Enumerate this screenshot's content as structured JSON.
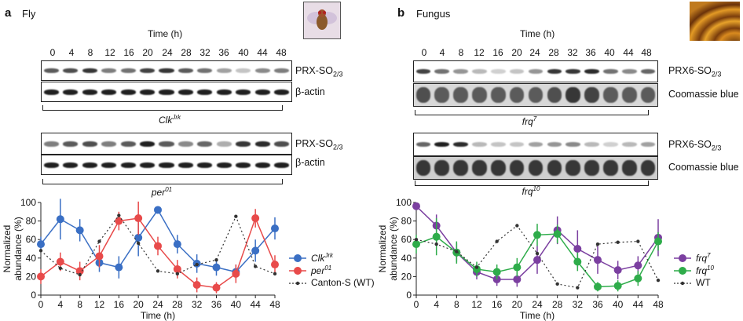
{
  "panel_a": {
    "letter": "a",
    "title": "Fly",
    "image_icon": "fly-photo-icon",
    "time_title": "Time (h)",
    "times": [
      "0",
      "4",
      "8",
      "12",
      "16",
      "20",
      "24",
      "28",
      "32",
      "36",
      "40",
      "44",
      "48"
    ],
    "blot1": {
      "label_main": "PRX-SO",
      "label_sub": "2/3"
    },
    "blot2": {
      "label": "β-actin"
    },
    "genotype1": {
      "main": "Clk",
      "sup": "Jrk"
    },
    "blot3": {
      "label_main": "PRX-SO",
      "label_sub": "2/3"
    },
    "blot4": {
      "label": "β-actin"
    },
    "genotype2": {
      "main": "per",
      "sup": "01"
    }
  },
  "panel_b": {
    "letter": "b",
    "title": "Fungus",
    "image_icon": "fungus-culture-photo-icon",
    "time_title": "Time (h)",
    "times": [
      "0",
      "4",
      "8",
      "12",
      "16",
      "20",
      "24",
      "28",
      "32",
      "36",
      "40",
      "44",
      "48"
    ],
    "blot1": {
      "label_main": "PRX6-SO",
      "label_sub": "2/3"
    },
    "blot2": {
      "label": "Coomassie blue"
    },
    "genotype1": {
      "main": "frq",
      "sup": "7"
    },
    "blot3": {
      "label_main": "PRX6-SO",
      "label_sub": "2/3"
    },
    "blot4": {
      "label": "Coomassie blue"
    },
    "genotype2": {
      "main": "frq",
      "sup": "10"
    }
  },
  "chart_data": [
    {
      "type": "line",
      "panel": "a",
      "xlabel": "Time (h)",
      "ylabel": "Normalized abundance (%)",
      "xlim": [
        0,
        48
      ],
      "ylim": [
        0,
        100
      ],
      "xticks": [
        0,
        4,
        8,
        12,
        16,
        20,
        24,
        28,
        32,
        36,
        40,
        44,
        48
      ],
      "yticks": [
        0,
        20,
        40,
        60,
        80,
        100
      ],
      "legend_placement": "right",
      "series": [
        {
          "name_main": "Clk",
          "name_sup": "Jrk",
          "color": "#3a6fc4",
          "style": "solid",
          "x": [
            0,
            4,
            8,
            12,
            16,
            20,
            24,
            28,
            32,
            36,
            40,
            44,
            48
          ],
          "y": [
            55,
            82,
            70,
            35,
            30,
            62,
            92,
            55,
            34,
            30,
            25,
            48,
            72
          ],
          "err": [
            8,
            22,
            12,
            10,
            12,
            20,
            0,
            10,
            10,
            9,
            8,
            12,
            12
          ]
        },
        {
          "name_main": "per",
          "name_sup": "01",
          "color": "#e84a4a",
          "style": "solid",
          "x": [
            0,
            4,
            8,
            12,
            16,
            20,
            24,
            28,
            32,
            36,
            40,
            44,
            48
          ],
          "y": [
            20,
            36,
            26,
            42,
            80,
            83,
            53,
            28,
            11,
            8,
            23,
            83,
            33
          ],
          "err": [
            8,
            10,
            10,
            12,
            10,
            18,
            10,
            10,
            8,
            6,
            10,
            10,
            10
          ]
        },
        {
          "name": "Canton-S (WT)",
          "color": "#333333",
          "style": "dotted",
          "x": [
            0,
            4,
            8,
            12,
            16,
            20,
            24,
            28,
            32,
            36,
            40,
            44,
            48
          ],
          "y": [
            48,
            29,
            22,
            58,
            86,
            56,
            26,
            23,
            33,
            38,
            85,
            31,
            23
          ],
          "err": [
            0,
            0,
            0,
            0,
            0,
            0,
            0,
            0,
            0,
            0,
            0,
            0,
            0
          ]
        }
      ]
    },
    {
      "type": "line",
      "panel": "b",
      "xlabel": "Time (h)",
      "ylabel": "Normalized abundance (%)",
      "xlim": [
        0,
        48
      ],
      "ylim": [
        0,
        100
      ],
      "xticks": [
        0,
        4,
        8,
        12,
        16,
        20,
        24,
        28,
        32,
        36,
        40,
        44,
        48
      ],
      "yticks": [
        0,
        20,
        40,
        60,
        80,
        100
      ],
      "legend_placement": "right",
      "series": [
        {
          "name_main": "frq",
          "name_sup": "7",
          "color": "#7b3fa0",
          "style": "solid",
          "x": [
            0,
            4,
            8,
            12,
            16,
            20,
            24,
            28,
            32,
            36,
            40,
            44,
            48
          ],
          "y": [
            96,
            75,
            46,
            25,
            17,
            17,
            38,
            70,
            50,
            38,
            27,
            32,
            62
          ],
          "err": [
            0,
            12,
            10,
            8,
            7,
            8,
            15,
            15,
            20,
            15,
            10,
            10,
            20
          ]
        },
        {
          "name_main": "frq",
          "name_sup": "10",
          "color": "#2eac4a",
          "style": "solid",
          "x": [
            0,
            4,
            8,
            12,
            16,
            20,
            24,
            28,
            32,
            36,
            40,
            44,
            48
          ],
          "y": [
            55,
            63,
            46,
            28,
            25,
            30,
            65,
            66,
            36,
            9,
            10,
            18,
            58
          ],
          "err": [
            10,
            20,
            12,
            8,
            8,
            10,
            12,
            10,
            10,
            5,
            6,
            8,
            10
          ]
        },
        {
          "name": "WT",
          "color": "#333333",
          "style": "dotted",
          "x": [
            0,
            4,
            8,
            12,
            16,
            20,
            24,
            28,
            32,
            36,
            40,
            44,
            48
          ],
          "y": [
            60,
            55,
            47,
            30,
            58,
            75,
            45,
            12,
            8,
            55,
            57,
            58,
            16
          ],
          "err": [
            0,
            0,
            0,
            0,
            0,
            0,
            0,
            0,
            0,
            0,
            0,
            0,
            0
          ]
        }
      ]
    }
  ]
}
